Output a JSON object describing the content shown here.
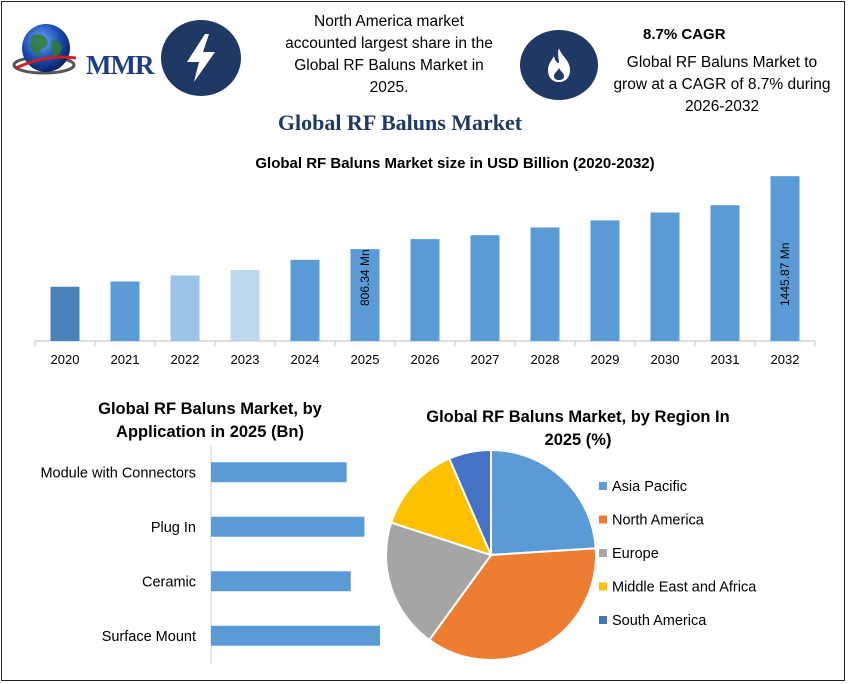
{
  "header": {
    "logo_text": "MMR",
    "info1": [
      "North America market",
      "accounted largest share in the",
      "Global RF Baluns Market in",
      "2025."
    ],
    "cagr_title": "8.7% CAGR",
    "info2": [
      "Global RF Baluns Market to",
      "grow at a CAGR of 8.7% during",
      "2026-2032"
    ],
    "icons": [
      "lightning-icon",
      "flame-icon",
      "globe-icon"
    ],
    "icon_bg_color": "#1f3864"
  },
  "main_title": "Global RF Baluns Market",
  "chart_data": [
    {
      "type": "bar",
      "title": "Global RF Baluns Market size in USD Billion (2020-2032)",
      "categories": [
        "2020",
        "2021",
        "2022",
        "2023",
        "2024",
        "2025",
        "2026",
        "2027",
        "2028",
        "2029",
        "2030",
        "2031",
        "2032"
      ],
      "values": [
        476,
        522,
        575,
        622,
        712,
        806.34,
        894,
        928,
        996,
        1058,
        1127,
        1191,
        1445.87
      ],
      "data_labels": {
        "5": "806.34 Mn",
        "12": "1445.87 Mn"
      },
      "colors": [
        "#4a83b8",
        "#5b9bd5",
        "#9dc3e6",
        "#bdd7ee",
        "#5b9bd5",
        "#5b9bd5",
        "#5b9bd5",
        "#5b9bd5",
        "#5b9bd5",
        "#5b9bd5",
        "#5b9bd5",
        "#5b9bd5",
        "#5b9bd5"
      ],
      "ylim": [
        0,
        1500
      ],
      "xlabel": "",
      "ylabel": "",
      "grid": false
    },
    {
      "type": "bar",
      "orientation": "horizontal",
      "title": [
        "Global RF Baluns Market, by",
        "Application in 2025 (Bn)"
      ],
      "categories": [
        "Module with Connectors",
        "Plug In",
        "Ceramic",
        "Surface Mount"
      ],
      "values": [
        99,
        112,
        102,
        137
      ],
      "xlim": [
        0,
        200
      ],
      "color": "#5b9bd5"
    },
    {
      "type": "pie",
      "title": [
        "Global RF Baluns Market, by Region In",
        "2025 (%)"
      ],
      "labels": [
        "Asia Pacific",
        "North America",
        "Europe",
        "Middle East and Africa",
        "South America"
      ],
      "values": [
        24,
        36,
        20,
        13.5,
        6.5
      ],
      "colors": [
        "#5b9bd5",
        "#ed7d31",
        "#a5a5a5",
        "#ffc000",
        "#4472c4"
      ],
      "legend": "right"
    }
  ]
}
